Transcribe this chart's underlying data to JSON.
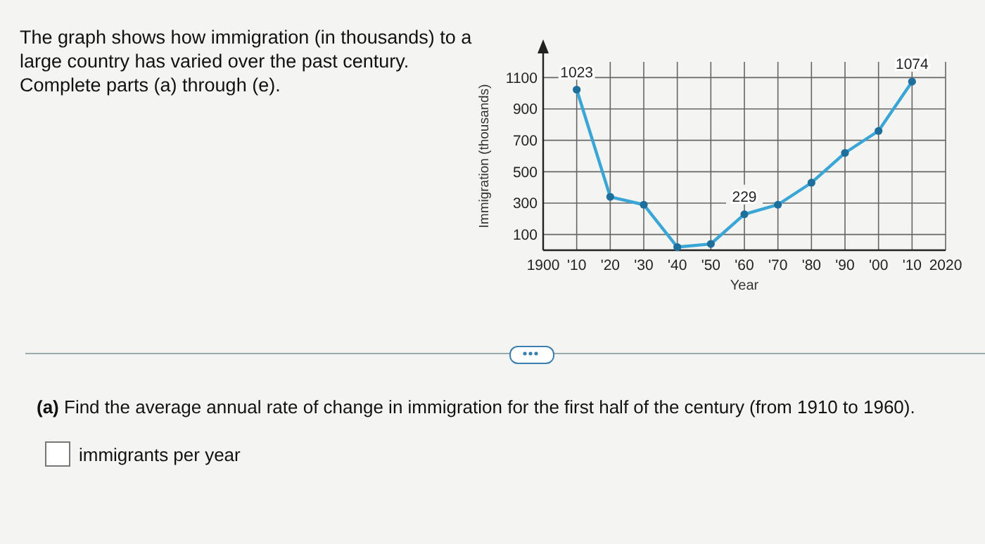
{
  "chart_data": {
    "type": "line",
    "title": "The graph shows how immigration (in thousands) to a large country has varied over the past century. Complete parts (a) through (e).",
    "xlabel": "Year",
    "ylabel": "Immigration (thousands)",
    "x": [
      1910,
      1920,
      1930,
      1940,
      1950,
      1960,
      1970,
      1980,
      1990,
      2000,
      2010
    ],
    "series": [
      {
        "color": "#3aa6d6",
        "values": [
          1023,
          340,
          290,
          20,
          40,
          229,
          290,
          430,
          620,
          760,
          1074
        ],
        "value_labels": [
          "1023",
          null,
          null,
          null,
          null,
          "229",
          null,
          null,
          null,
          null,
          "1074"
        ]
      }
    ],
    "xlim": [
      1900,
      2020
    ],
    "ylim": [
      0,
      1200
    ],
    "xticks": [
      1900,
      {
        "value": 1910,
        "label": "'10"
      },
      {
        "value": 1920,
        "label": "'20"
      },
      {
        "value": 1930,
        "label": "'30"
      },
      {
        "value": 1940,
        "label": "'40"
      },
      {
        "value": 1950,
        "label": "'50"
      },
      {
        "value": 1960,
        "label": "'60"
      },
      {
        "value": 1970,
        "label": "'70"
      },
      {
        "value": 1980,
        "label": "'80"
      },
      {
        "value": 1990,
        "label": "'90"
      },
      {
        "value": 2000,
        "label": "'00"
      },
      {
        "value": 2010,
        "label": "'10"
      },
      2020
    ],
    "yticks": [
      100,
      300,
      500,
      700,
      900,
      1100
    ],
    "grid": true,
    "marker": "circle",
    "line_style": "solid",
    "annotations": [
      "(a) Find the average annual rate of change in immigration for the first half of the century (from 1910 to 1960).",
      "immigrants per year"
    ]
  }
}
